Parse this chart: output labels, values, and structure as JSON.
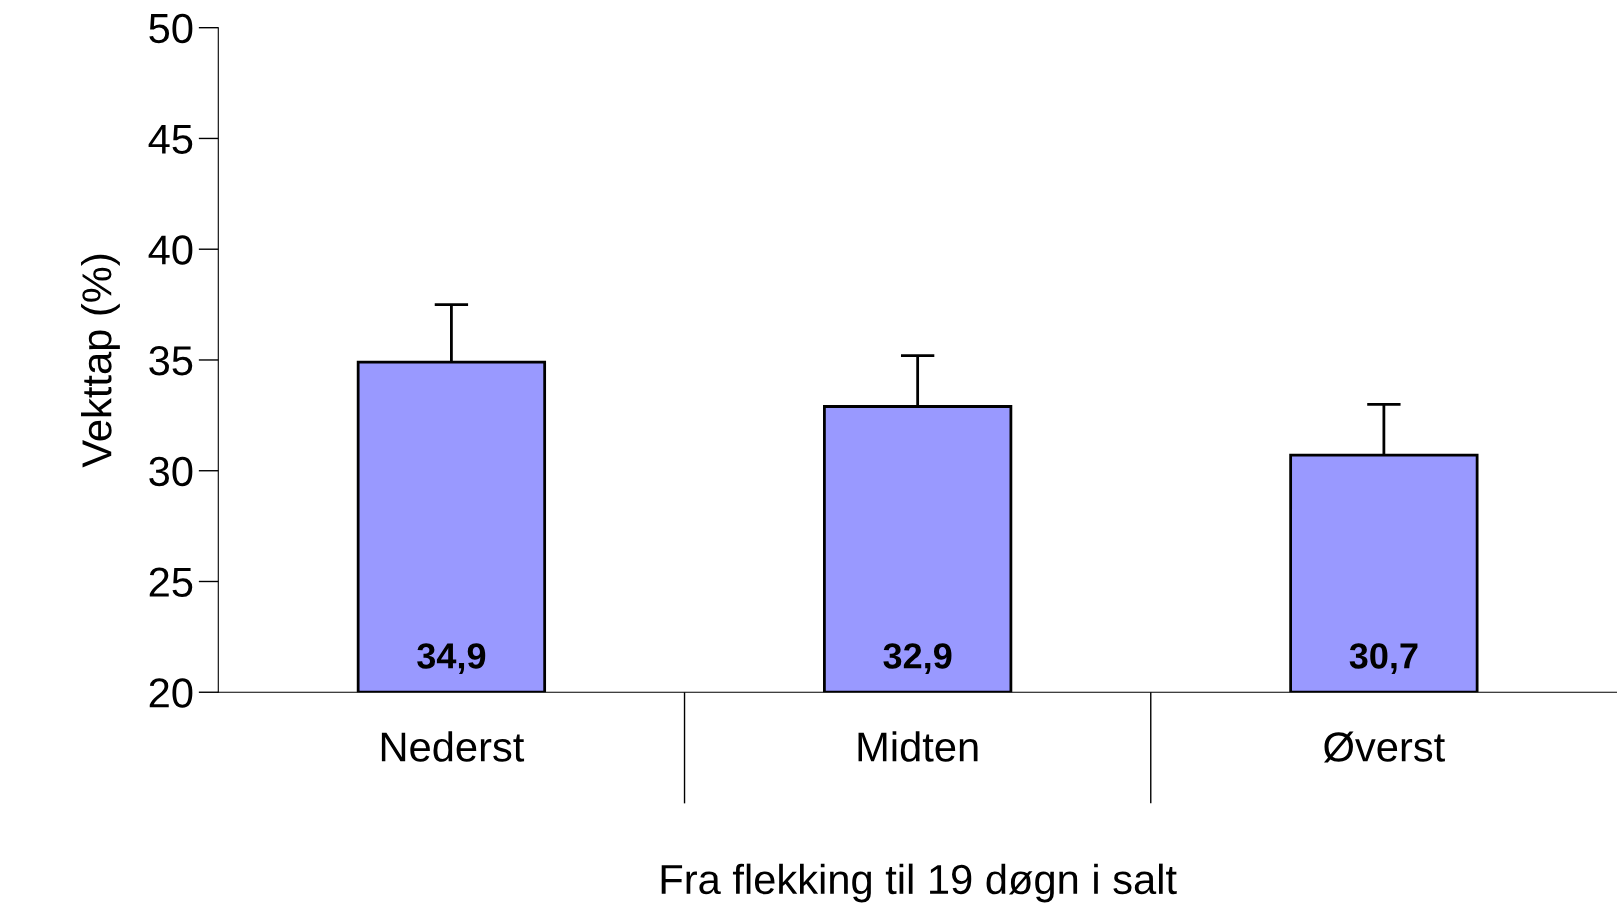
{
  "chart_data": {
    "type": "bar",
    "xlabel": "Fra flekking til 19 døgn i salt",
    "ylabel": "Vekttap (%)",
    "categories": [
      "Nederst",
      "Midten",
      "Øverst"
    ],
    "values": [
      34.9,
      32.9,
      30.7
    ],
    "value_labels": [
      "34,9",
      "32,9",
      "30,7"
    ],
    "errors": [
      2.6,
      2.3,
      2.3
    ],
    "color": "#9999ff",
    "ylim": [
      20,
      50
    ],
    "yticks": [
      20,
      25,
      30,
      35,
      40,
      45,
      50
    ],
    "grid": false,
    "legend": false
  }
}
